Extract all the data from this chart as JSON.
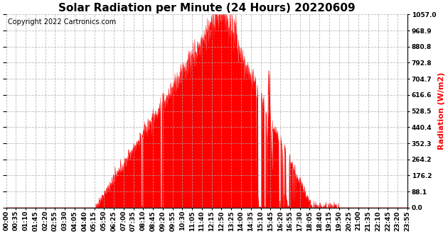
{
  "title": "Solar Radiation per Minute (24 Hours) 20220609",
  "copyright_text": "Copyright 2022 Cartronics.com",
  "ylabel_right": "Radiation (W/m2)",
  "ylabel_right_color": "#ff0000",
  "fill_color": "#ff0000",
  "line_color": "#ff0000",
  "background_color": "#ffffff",
  "grid_color": "#aaaaaa",
  "yticks": [
    0.0,
    88.1,
    176.2,
    264.2,
    352.3,
    440.4,
    528.5,
    616.6,
    704.7,
    792.8,
    880.8,
    968.9,
    1057.0
  ],
  "ymax": 1057.0,
  "ymin": 0.0,
  "xtick_labels": [
    "00:00",
    "00:35",
    "01:10",
    "01:45",
    "02:20",
    "02:55",
    "03:30",
    "04:05",
    "04:40",
    "05:15",
    "05:50",
    "06:25",
    "07:00",
    "07:35",
    "08:10",
    "08:45",
    "09:20",
    "09:55",
    "10:30",
    "11:05",
    "11:40",
    "12:15",
    "12:50",
    "13:25",
    "14:00",
    "14:35",
    "15:10",
    "15:45",
    "16:20",
    "16:55",
    "17:30",
    "18:05",
    "18:40",
    "19:15",
    "19:50",
    "20:25",
    "21:00",
    "21:35",
    "22:10",
    "22:45",
    "23:20",
    "23:55"
  ],
  "dashed_zero_line_color": "#ff0000",
  "title_fontsize": 11,
  "tick_fontsize": 6.5,
  "copyright_fontsize": 7,
  "ylabel_fontsize": 8
}
